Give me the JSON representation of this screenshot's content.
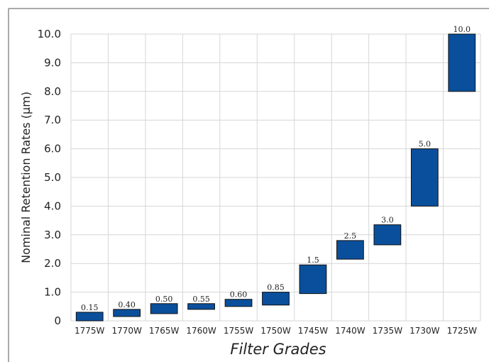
{
  "chart_data": {
    "type": "bar",
    "subtype": "floating",
    "ylabel": "Nominal Retention Rates (µm)",
    "xlabel": "Filter Grades",
    "ylim": [
      0,
      10.0
    ],
    "y_ticks": [
      "0",
      "1.0",
      "2.0",
      "3.0",
      "4.0",
      "5.0",
      "6.0",
      "7.0",
      "8.0",
      "9.0",
      "10.0"
    ],
    "y_tick_values": [
      0,
      1,
      2,
      3,
      4,
      5,
      6,
      7,
      8,
      9,
      10
    ],
    "grid": true,
    "bar_color": "#0a4f9c",
    "categories": [
      "1775W",
      "1770W",
      "1765W",
      "1760W",
      "1755W",
      "1750W",
      "1745W",
      "1740W",
      "1735W",
      "1730W",
      "1725W"
    ],
    "values": [
      0.15,
      0.4,
      0.5,
      0.55,
      0.6,
      0.85,
      1.5,
      2.5,
      3.0,
      5.0,
      10.0
    ],
    "value_labels": [
      "0.15",
      "0.40",
      "0.50",
      "0.55",
      "0.60",
      "0.85",
      "1.5",
      "2.5",
      "3.0",
      "5.0",
      "10.0"
    ],
    "ranges": [
      [
        0.0,
        0.3
      ],
      [
        0.15,
        0.4
      ],
      [
        0.25,
        0.6
      ],
      [
        0.4,
        0.6
      ],
      [
        0.5,
        0.75
      ],
      [
        0.55,
        1.0
      ],
      [
        0.95,
        1.95
      ],
      [
        2.15,
        2.8
      ],
      [
        2.65,
        3.35
      ],
      [
        4.0,
        6.0
      ],
      [
        8.0,
        10.0
      ]
    ]
  }
}
